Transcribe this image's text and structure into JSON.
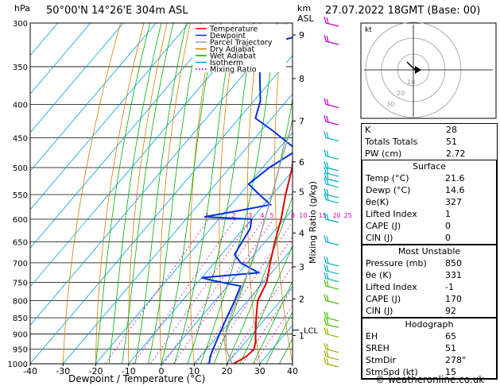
{
  "header": {
    "location": "50°00'N  14°26'E  304m  ASL",
    "datetime": "27.07.2022  18GMT  (Base: 00)",
    "unit_hpa": "hPa",
    "unit_km": "km",
    "unit_asl": "ASL"
  },
  "footer": {
    "credit": "© weatheronline.co.uk"
  },
  "hodograph": {
    "label": "kt",
    "rings": [
      "10",
      "20",
      "30"
    ]
  },
  "indices": [
    {
      "k": "K",
      "v": "28"
    },
    {
      "k": "Totals Totals",
      "v": "51"
    },
    {
      "k": "PW (cm)",
      "v": "2.72"
    }
  ],
  "surface": {
    "title": "Surface",
    "rows": [
      {
        "k": "Temp (°C)",
        "v": "21.6"
      },
      {
        "k": "Dewp (°C)",
        "v": "14.6"
      },
      {
        "k": "θe(K)",
        "v": "327"
      },
      {
        "k": "Lifted Index",
        "v": "1"
      },
      {
        "k": "CAPE (J)",
        "v": "0"
      },
      {
        "k": "CIN (J)",
        "v": "0"
      }
    ]
  },
  "most_unstable": {
    "title": "Most Unstable",
    "rows": [
      {
        "k": "Pressure (mb)",
        "v": "850"
      },
      {
        "k": "θe (K)",
        "v": "331"
      },
      {
        "k": "Lifted Index",
        "v": "-1"
      },
      {
        "k": "CAPE (J)",
        "v": "170"
      },
      {
        "k": "CIN (J)",
        "v": "92"
      }
    ]
  },
  "hodo_table": {
    "title": "Hodograph",
    "rows": [
      {
        "k": "EH",
        "v": "65"
      },
      {
        "k": "SREH",
        "v": "51"
      },
      {
        "k": "StmDir",
        "v": "278°"
      },
      {
        "k": "StmSpd (kt)",
        "v": "15"
      }
    ]
  },
  "chart_data": {
    "type": "line",
    "xlabel": "Dewpoint / Temperature (°C)",
    "ylabel_right": "Mixing Ratio (g/kg)",
    "xlim": [
      -40,
      40
    ],
    "ylim_hpa": [
      1000,
      300
    ],
    "x_ticks": [
      "-40",
      "-30",
      "-20",
      "-10",
      "0",
      "10",
      "20",
      "30",
      "40"
    ],
    "p_ticks": [
      "300",
      "350",
      "400",
      "450",
      "500",
      "550",
      "600",
      "650",
      "700",
      "750",
      "800",
      "850",
      "900",
      "950",
      "1000"
    ],
    "km_ticks": [
      {
        "km": "9",
        "p": 313
      },
      {
        "km": "8",
        "p": 365
      },
      {
        "km": "7",
        "p": 424
      },
      {
        "km": "6",
        "p": 490
      },
      {
        "km": "5",
        "p": 545
      },
      {
        "km": "4",
        "p": 630
      },
      {
        "km": "3",
        "p": 710
      },
      {
        "km": "2",
        "p": 795
      },
      {
        "km": "1",
        "p": 905
      }
    ],
    "lcl": {
      "label": "LCL",
      "p": 888
    },
    "mixing_ratio_labels": [
      "1",
      "2",
      "3",
      "4",
      "5",
      "8",
      "10",
      "15",
      "20",
      "25"
    ],
    "legend": [
      {
        "name": "Temperature",
        "color": "#e00000"
      },
      {
        "name": "Dewpoint",
        "color": "#0030e0"
      },
      {
        "name": "Parcel Trajectory",
        "color": "#a0a0a0"
      },
      {
        "name": "Dry Adiabat",
        "color": "#d08000"
      },
      {
        "name": "Wet Adiabat",
        "color": "#00b000"
      },
      {
        "name": "Isotherm",
        "color": "#00a0e0"
      },
      {
        "name": "Mixing Ratio",
        "color": "#d000d0"
      }
    ],
    "series": [
      {
        "name": "Temperature",
        "points": [
          [
            1000,
            22
          ],
          [
            975,
            24
          ],
          [
            950,
            24.5
          ],
          [
            925,
            23
          ],
          [
            900,
            21
          ],
          [
            850,
            17
          ],
          [
            800,
            13
          ],
          [
            750,
            11
          ],
          [
            700,
            7
          ],
          [
            650,
            3
          ],
          [
            600,
            -1
          ],
          [
            550,
            -6
          ],
          [
            500,
            -11
          ],
          [
            450,
            -18
          ],
          [
            400,
            -25
          ],
          [
            350,
            -33
          ],
          [
            300,
            -42
          ]
        ]
      },
      {
        "name": "Dewpoint",
        "points": [
          [
            1000,
            14.6
          ],
          [
            975,
            13
          ],
          [
            950,
            12
          ],
          [
            900,
            10
          ],
          [
            850,
            8
          ],
          [
            800,
            6
          ],
          [
            760,
            4
          ],
          [
            745,
            -6
          ],
          [
            738,
            -10
          ],
          [
            725,
            6
          ],
          [
            700,
            -2
          ],
          [
            680,
            -6
          ],
          [
            650,
            -7
          ],
          [
            620,
            -8
          ],
          [
            600,
            -10
          ],
          [
            595,
            -25
          ],
          [
            585,
            -18
          ],
          [
            570,
            -8
          ],
          [
            550,
            -14
          ],
          [
            530,
            -20
          ],
          [
            500,
            -18
          ],
          [
            470,
            -14
          ],
          [
            450,
            -22
          ],
          [
            440,
            -26
          ],
          [
            420,
            -35
          ],
          [
            395,
            -38
          ],
          [
            360,
            -45
          ],
          [
            325,
            -52
          ],
          [
            310,
            -40
          ],
          [
            300,
            -38
          ]
        ]
      },
      {
        "name": "Parcel Trajectory",
        "points": [
          [
            1000,
            21.6
          ],
          [
            950,
            16
          ],
          [
            900,
            12
          ],
          [
            888,
            11
          ],
          [
            850,
            9
          ],
          [
            800,
            6.5
          ],
          [
            750,
            4
          ],
          [
            700,
            1.5
          ],
          [
            650,
            -2
          ],
          [
            600,
            -6
          ],
          [
            550,
            -10
          ],
          [
            500,
            -15
          ],
          [
            450,
            -20
          ],
          [
            400,
            -26
          ],
          [
            350,
            -34
          ],
          [
            300,
            -44
          ]
        ]
      }
    ]
  }
}
